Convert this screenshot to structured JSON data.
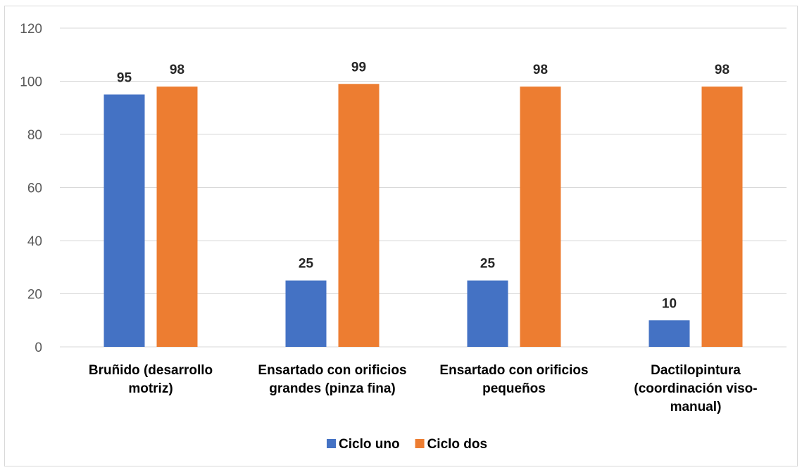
{
  "chart_data": {
    "type": "bar",
    "title": "",
    "xlabel": "",
    "ylabel": "",
    "categories": [
      [
        "Bruñido (desarrollo",
        "motriz)"
      ],
      [
        "Ensartado con orificios",
        "grandes (pinza fina)"
      ],
      [
        "Ensartado con orificios",
        "pequeños"
      ],
      [
        "Dactilopintura",
        "(coordinación viso-",
        "manual)"
      ]
    ],
    "series": [
      {
        "name": "Ciclo uno",
        "color": "#4472c4",
        "values": [
          95,
          25,
          25,
          10
        ]
      },
      {
        "name": "Ciclo dos",
        "color": "#ed7d31",
        "values": [
          98,
          99,
          98,
          98
        ]
      }
    ],
    "ylim": [
      0,
      120
    ],
    "yticks": [
      0,
      20,
      40,
      60,
      80,
      100,
      120
    ],
    "grid": true,
    "legend_position": "bottom",
    "data_labels": true
  }
}
